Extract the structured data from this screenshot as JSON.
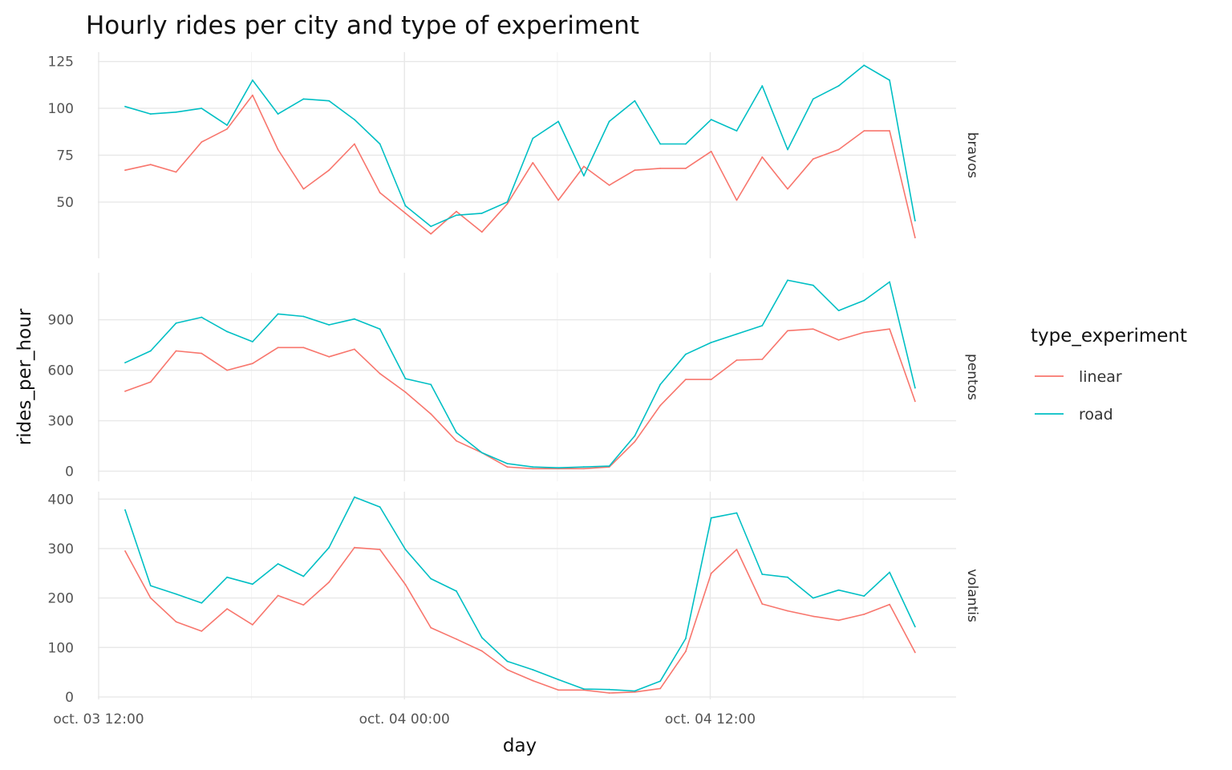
{
  "chart_data": {
    "type": "line",
    "title": "Hourly rides per city and type of experiment",
    "xlabel": "day",
    "ylabel": "rides_per_hour",
    "x_ticks": [
      "oct. 03 12:00",
      "oct. 04 00:00",
      "oct. 04 12:00"
    ],
    "x_start": "oct. 03 12:00",
    "x_step": "1 hour",
    "grid": true,
    "legend": {
      "title": "type_experiment",
      "position": "right",
      "items": [
        {
          "label": "linear",
          "color": "#F8766D"
        },
        {
          "label": "road",
          "color": "#00BFC4"
        }
      ]
    },
    "panels": [
      {
        "label": "bravos",
        "y_ticks": [
          50,
          75,
          100,
          125
        ],
        "ylim": [
          20,
          130
        ],
        "series": [
          {
            "name": "linear",
            "color": "#F8766D",
            "values": [
              67,
              70,
              66,
              82,
              89,
              107,
              78,
              57,
              67,
              81,
              55,
              44,
              33,
              45,
              34,
              49,
              71,
              51,
              69,
              59,
              67,
              68,
              68,
              77,
              51,
              74,
              57,
              73,
              78,
              88,
              88,
              31
            ]
          },
          {
            "name": "road",
            "color": "#00BFC4",
            "values": [
              101,
              97,
              98,
              100,
              91,
              115,
              97,
              105,
              104,
              94,
              81,
              48,
              37,
              43,
              44,
              50,
              84,
              93,
              64,
              93,
              104,
              81,
              81,
              94,
              88,
              112,
              78,
              105,
              112,
              123,
              115,
              40
            ]
          }
        ]
      },
      {
        "label": "pentos",
        "y_ticks": [
          0,
          300,
          600,
          900
        ],
        "ylim": [
          -60,
          1180
        ],
        "series": [
          {
            "name": "linear",
            "color": "#F8766D",
            "values": [
              475,
              530,
              715,
              700,
              600,
              640,
              735,
              735,
              680,
              725,
              580,
              470,
              340,
              180,
              110,
              25,
              15,
              15,
              15,
              25,
              175,
              390,
              545,
              545,
              660,
              665,
              835,
              845,
              780,
              825,
              845,
              415
            ]
          },
          {
            "name": "road",
            "color": "#00BFC4",
            "values": [
              645,
              715,
              880,
              915,
              830,
              770,
              935,
              920,
              870,
              905,
              845,
              550,
              515,
              230,
              110,
              45,
              25,
              20,
              25,
              30,
              210,
              515,
              695,
              765,
              815,
              865,
              1135,
              1105,
              955,
              1015,
              1125,
              495
            ]
          }
        ]
      },
      {
        "label": "volantis",
        "y_ticks": [
          0,
          100,
          200,
          300,
          400
        ],
        "ylim": [
          -5,
          415
        ],
        "series": [
          {
            "name": "linear",
            "color": "#F8766D",
            "values": [
              295,
              200,
              152,
              133,
              178,
              146,
              205,
              186,
              232,
              302,
              298,
              227,
              140,
              117,
              93,
              55,
              33,
              14,
              14,
              8,
              10,
              17,
              92,
              250,
              298,
              188,
              174,
              163,
              155,
              167,
              187,
              90
            ]
          },
          {
            "name": "road",
            "color": "#00BFC4",
            "values": [
              378,
              225,
              208,
              190,
              242,
              228,
              269,
              244,
              302,
              404,
              384,
              298,
              239,
              214,
              120,
              72,
              55,
              35,
              16,
              15,
              12,
              32,
              118,
              362,
              372,
              248,
              242,
              200,
              216,
              204,
              252,
              142
            ]
          }
        ]
      }
    ]
  }
}
